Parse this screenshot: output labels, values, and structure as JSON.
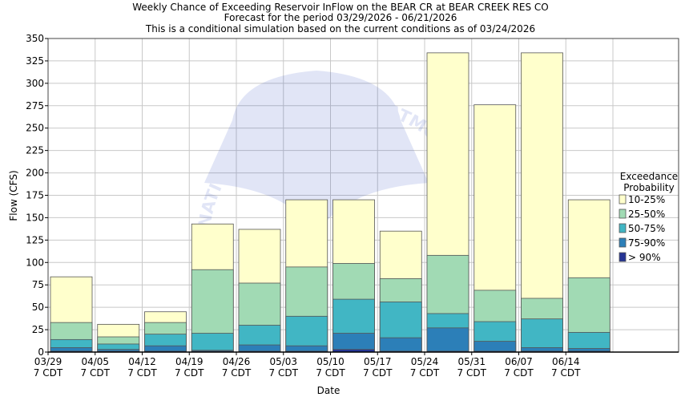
{
  "title_lines": [
    "Weekly Chance of Exceeding Reservoir InFlow on the BEAR CR at BEAR CREEK RES CO",
    "Forecast for the period 03/29/2026 - 06/21/2026",
    "This is a conditional simulation based on the current conditions as of 03/24/2026"
  ],
  "watermark": "NATIONAL OCEANIC AND ATMOSPHERIC ADMINISTRATION",
  "watermark_logo": "NOAA",
  "chart_data": {
    "type": "bar",
    "title": "Weekly Chance of Exceeding Reservoir InFlow on the BEAR CR at BEAR CREEK RES CO",
    "xlabel": "Date",
    "ylabel": "Flow (CFS)",
    "ylim": [
      0,
      350
    ],
    "yticks": [
      0,
      25,
      50,
      75,
      100,
      125,
      150,
      175,
      200,
      225,
      250,
      275,
      300,
      325,
      350
    ],
    "grid": true,
    "legend_position": "right",
    "legend_title": [
      "Exceedance",
      "Probability"
    ],
    "categories": [
      [
        "03/29",
        "7 CDT"
      ],
      [
        "04/05",
        "7 CDT"
      ],
      [
        "04/12",
        "7 CDT"
      ],
      [
        "04/19",
        "7 CDT"
      ],
      [
        "04/26",
        "7 CDT"
      ],
      [
        "05/03",
        "7 CDT"
      ],
      [
        "05/10",
        "7 CDT"
      ],
      [
        "05/17",
        "7 CDT"
      ],
      [
        "05/24",
        "7 CDT"
      ],
      [
        "05/31",
        "7 CDT"
      ],
      [
        "06/07",
        "7 CDT"
      ],
      [
        "06/14",
        "7 CDT"
      ]
    ],
    "series": [
      {
        "name": "10-25%",
        "color": "#ffffcc",
        "values": [
          84,
          31,
          45,
          143,
          137,
          170,
          170,
          135,
          334,
          276,
          334,
          170
        ]
      },
      {
        "name": "25-50%",
        "color": "#a1dab4",
        "values": [
          33,
          17,
          33,
          92,
          77,
          95,
          99,
          82,
          108,
          69,
          60,
          83
        ]
      },
      {
        "name": "50-75%",
        "color": "#41b6c4",
        "values": [
          14,
          9,
          20,
          21,
          30,
          40,
          59,
          56,
          43,
          34,
          37,
          22
        ]
      },
      {
        "name": "75-90%",
        "color": "#2c7fb8",
        "values": [
          5,
          3,
          7,
          2,
          8,
          7,
          21,
          16,
          27,
          12,
          5,
          4
        ]
      },
      {
        "name": "> 90%",
        "color": "#253494",
        "values": [
          1,
          1,
          1,
          1,
          1,
          1,
          3,
          1,
          1,
          1,
          1,
          1
        ]
      }
    ]
  }
}
